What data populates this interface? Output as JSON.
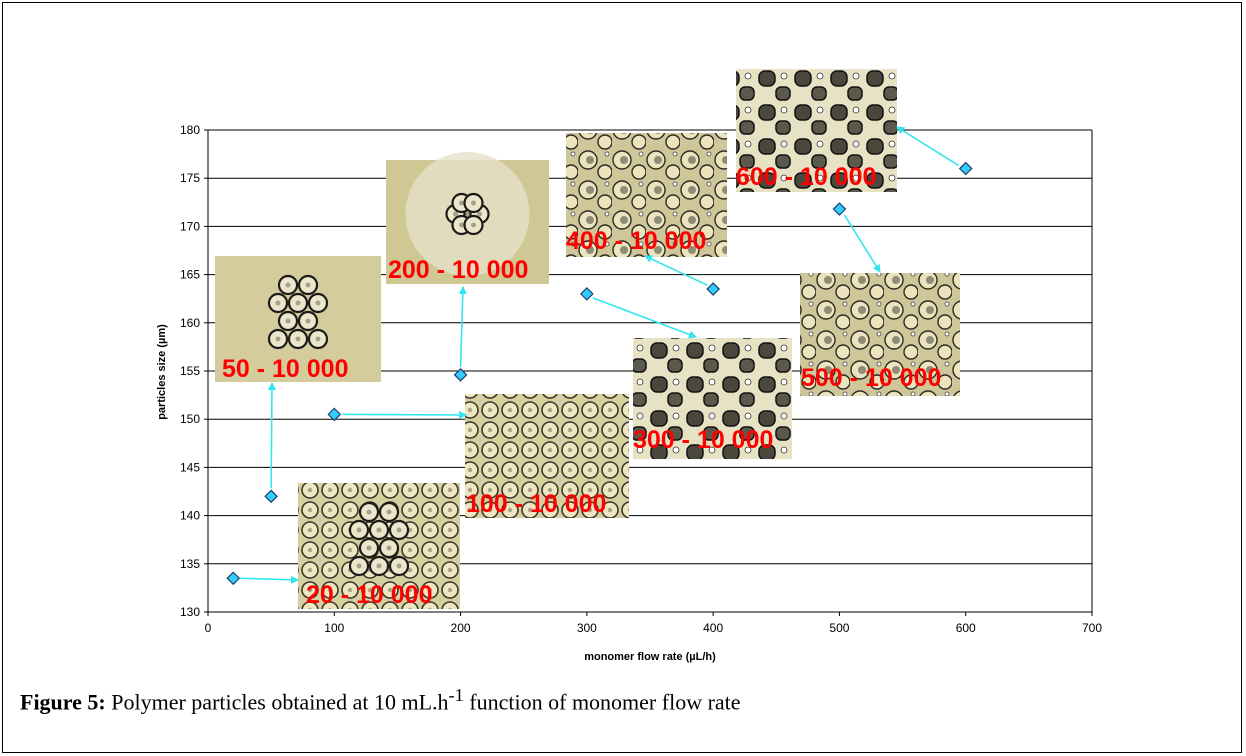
{
  "caption": {
    "label": "Figure 5:",
    "text_before": "Polymer particles obtained at 10 mL.h",
    "superscript": "-1",
    "text_after": " function of monomer flow rate"
  },
  "chart_data": {
    "type": "scatter",
    "title": "",
    "xlabel": "monomer flow rate (µL/h)",
    "ylabel": "particles size (µm)",
    "xlim": [
      0,
      700
    ],
    "ylim": [
      130,
      180
    ],
    "xticks": [
      0,
      100,
      200,
      300,
      400,
      500,
      600,
      700
    ],
    "yticks": [
      130,
      135,
      140,
      145,
      150,
      155,
      160,
      165,
      170,
      175,
      180
    ],
    "grid": "horizontal",
    "marker": "diamond",
    "marker_color": "#33ccff",
    "arrow_color": "#33e6ee",
    "points": [
      {
        "x": 20,
        "y": 133.5
      },
      {
        "x": 50,
        "y": 142
      },
      {
        "x": 100,
        "y": 150.5
      },
      {
        "x": 200,
        "y": 154.6
      },
      {
        "x": 300,
        "y": 163
      },
      {
        "x": 400,
        "y": 163.5
      },
      {
        "x": 500,
        "y": 171.8
      },
      {
        "x": 600,
        "y": 176
      }
    ],
    "image_labels": [
      "20 - 10 000",
      "50 - 10 000",
      "100 - 10 000",
      "200 - 10 000",
      "300 - 10 000",
      "400 - 10 000",
      "500 - 10 000",
      "600 - 10 000"
    ]
  }
}
